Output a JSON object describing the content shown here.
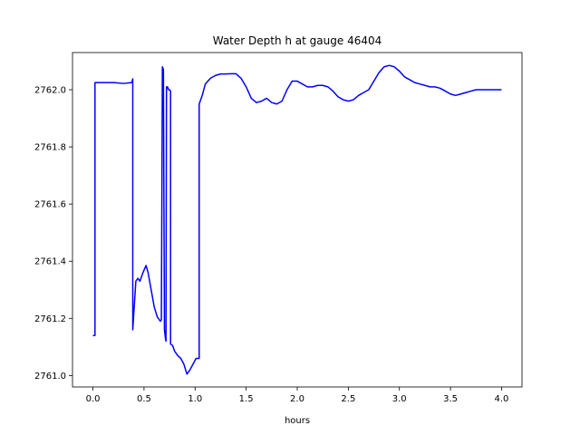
{
  "chart_data": {
    "type": "line",
    "title": "Water Depth h at gauge 46404",
    "xlabel": "hours",
    "ylabel": "",
    "xlim": [
      -0.2,
      4.2
    ],
    "ylim": [
      2760.96,
      2762.13
    ],
    "xticks": [
      0.0,
      0.5,
      1.0,
      1.5,
      2.0,
      2.5,
      3.0,
      3.5,
      4.0
    ],
    "xtick_labels": [
      "0.0",
      "0.5",
      "1.0",
      "1.5",
      "2.0",
      "2.5",
      "3.0",
      "3.5",
      "4.0"
    ],
    "yticks": [
      2761.0,
      2761.2,
      2761.4,
      2761.6,
      2761.8,
      2762.0
    ],
    "ytick_labels": [
      "2761.0",
      "2761.2",
      "2761.4",
      "2761.6",
      "2761.8",
      "2762.0"
    ],
    "grid": false,
    "series": [
      {
        "name": "",
        "color": "#0000ff",
        "x": [
          0.0,
          0.02,
          0.02,
          0.1,
          0.2,
          0.3,
          0.38,
          0.39,
          0.39,
          0.42,
          0.44,
          0.46,
          0.49,
          0.52,
          0.54,
          0.57,
          0.6,
          0.63,
          0.66,
          0.67,
          0.68,
          0.69,
          0.7,
          0.71,
          0.715,
          0.72,
          0.73,
          0.74,
          0.75,
          0.76,
          0.76,
          0.78,
          0.8,
          0.83,
          0.86,
          0.89,
          0.92,
          0.95,
          0.98,
          1.01,
          1.04,
          1.04,
          1.07,
          1.1,
          1.15,
          1.2,
          1.25,
          1.3,
          1.35,
          1.4,
          1.45,
          1.5,
          1.55,
          1.6,
          1.65,
          1.7,
          1.75,
          1.8,
          1.85,
          1.9,
          1.95,
          2.0,
          2.05,
          2.1,
          2.15,
          2.2,
          2.25,
          2.3,
          2.35,
          2.4,
          2.45,
          2.5,
          2.55,
          2.6,
          2.65,
          2.7,
          2.75,
          2.8,
          2.85,
          2.9,
          2.95,
          3.0,
          3.05,
          3.1,
          3.15,
          3.2,
          3.25,
          3.3,
          3.35,
          3.4,
          3.45,
          3.5,
          3.55,
          3.6,
          3.65,
          3.7,
          3.75,
          3.8,
          3.85,
          3.9,
          3.95,
          4.0
        ],
        "y": [
          2761.14,
          2761.14,
          2762.025,
          2762.025,
          2762.025,
          2762.022,
          2762.025,
          2762.038,
          2761.16,
          2761.33,
          2761.34,
          2761.33,
          2761.36,
          2761.385,
          2761.36,
          2761.3,
          2761.24,
          2761.205,
          2761.19,
          2761.195,
          2762.08,
          2762.07,
          2761.16,
          2761.13,
          2761.12,
          2762.01,
          2762.01,
          2762.0,
          2762.0,
          2761.995,
          2761.11,
          2761.105,
          2761.085,
          2761.07,
          2761.06,
          2761.04,
          2761.005,
          2761.02,
          2761.04,
          2761.06,
          2761.06,
          2761.95,
          2761.98,
          2762.02,
          2762.04,
          2762.05,
          2762.055,
          2762.055,
          2762.056,
          2762.056,
          2762.04,
          2762.01,
          2761.97,
          2761.955,
          2761.96,
          2761.97,
          2761.955,
          2761.95,
          2761.96,
          2762.0,
          2762.03,
          2762.03,
          2762.02,
          2762.01,
          2762.01,
          2762.015,
          2762.015,
          2762.01,
          2761.995,
          2761.975,
          2761.965,
          2761.96,
          2761.965,
          2761.98,
          2761.99,
          2762.0,
          2762.03,
          2762.06,
          2762.08,
          2762.085,
          2762.08,
          2762.065,
          2762.045,
          2762.035,
          2762.025,
          2762.02,
          2762.015,
          2762.01,
          2762.01,
          2762.005,
          2761.995,
          2761.985,
          2761.98,
          2761.985,
          2761.99,
          2761.995,
          2762.0,
          2762.0,
          2762.0,
          2762.0,
          2762.0,
          2762.0
        ]
      }
    ]
  }
}
